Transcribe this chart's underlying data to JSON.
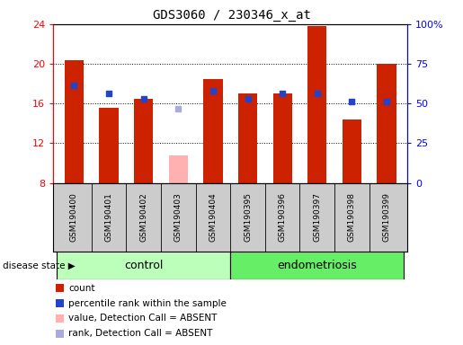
{
  "title": "GDS3060 / 230346_x_at",
  "samples": [
    "GSM190400",
    "GSM190401",
    "GSM190402",
    "GSM190403",
    "GSM190404",
    "GSM190395",
    "GSM190396",
    "GSM190397",
    "GSM190398",
    "GSM190399"
  ],
  "ylim_left": [
    8,
    24
  ],
  "ylim_right": [
    0,
    100
  ],
  "yticks_left": [
    8,
    12,
    16,
    20,
    24
  ],
  "yticks_right": [
    0,
    25,
    50,
    75,
    100
  ],
  "yticklabels_right": [
    "0",
    "25",
    "50",
    "75",
    "100%"
  ],
  "red_bars": [
    20.4,
    15.6,
    16.5,
    null,
    18.5,
    17.0,
    17.0,
    23.8,
    14.4,
    20.0
  ],
  "pink_bars": [
    null,
    null,
    null,
    10.8,
    null,
    null,
    null,
    null,
    null,
    null
  ],
  "blue_dots": [
    17.8,
    17.0,
    16.5,
    null,
    17.3,
    16.5,
    17.0,
    17.0,
    16.2,
    16.2
  ],
  "lavender_dots": [
    null,
    null,
    null,
    15.5,
    null,
    null,
    null,
    null,
    null,
    null
  ],
  "bar_bottom": 8,
  "bar_width": 0.55,
  "dot_size": 22,
  "red_bar_color": "#cc2200",
  "pink_bar_color": "#ffb0b0",
  "blue_dot_color": "#2244cc",
  "lavender_dot_color": "#aaaadd",
  "control_color": "#bbffbb",
  "endometriosis_color": "#66ee66",
  "label_bg_color": "#cccccc",
  "legend_items": [
    {
      "color": "#cc2200",
      "label": "count"
    },
    {
      "color": "#2244cc",
      "label": "percentile rank within the sample"
    },
    {
      "color": "#ffb0b0",
      "label": "value, Detection Call = ABSENT"
    },
    {
      "color": "#aaaadd",
      "label": "rank, Detection Call = ABSENT"
    }
  ]
}
